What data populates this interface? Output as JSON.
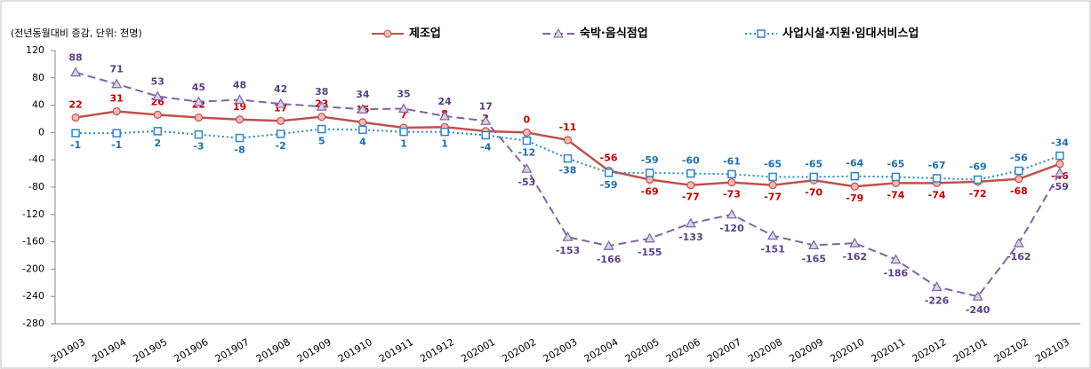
{
  "chart_data": {
    "type": "line",
    "annotation": "(전년동월대비 증감, 단위: 천명)",
    "categories": [
      "201903",
      "201904",
      "201905",
      "201906",
      "201907",
      "201908",
      "201909",
      "201910",
      "201911",
      "201912",
      "202001",
      "202002",
      "202003",
      "202004",
      "202005",
      "202006",
      "202007",
      "202008",
      "202009",
      "202010",
      "202011",
      "202012",
      "202101",
      "202102",
      "202103"
    ],
    "series": [
      {
        "name": "제조업",
        "color": "#c0504d",
        "values": [
          22,
          31,
          26,
          22,
          19,
          17,
          23,
          15,
          7,
          8,
          2,
          0,
          -11,
          -56,
          -69,
          -77,
          -73,
          -77,
          -70,
          -79,
          -74,
          -74,
          -72,
          -68,
          -46
        ]
      },
      {
        "name": "숙박·음식점업",
        "color": "#8064a2",
        "values": [
          88,
          71,
          53,
          45,
          48,
          42,
          38,
          34,
          35,
          24,
          17,
          -53,
          -153,
          -166,
          -155,
          -133,
          -120,
          -151,
          -165,
          -162,
          -186,
          -226,
          -240,
          -162,
          -59
        ]
      },
      {
        "name": "사업시설·지원·임대서비스업",
        "color": "#2e86c1",
        "values": [
          -1,
          -1,
          2,
          -3,
          -8,
          -2,
          5,
          4,
          1,
          1,
          -4,
          -12,
          -38,
          -59,
          -59,
          -60,
          -61,
          -65,
          -65,
          -64,
          -65,
          -67,
          -69,
          -56,
          -34
        ]
      }
    ],
    "ylim": [
      -280,
      120
    ],
    "yticks": [
      -280,
      -240,
      -200,
      -160,
      -120,
      -80,
      -40,
      0,
      40,
      80,
      120
    ],
    "grid": false
  }
}
